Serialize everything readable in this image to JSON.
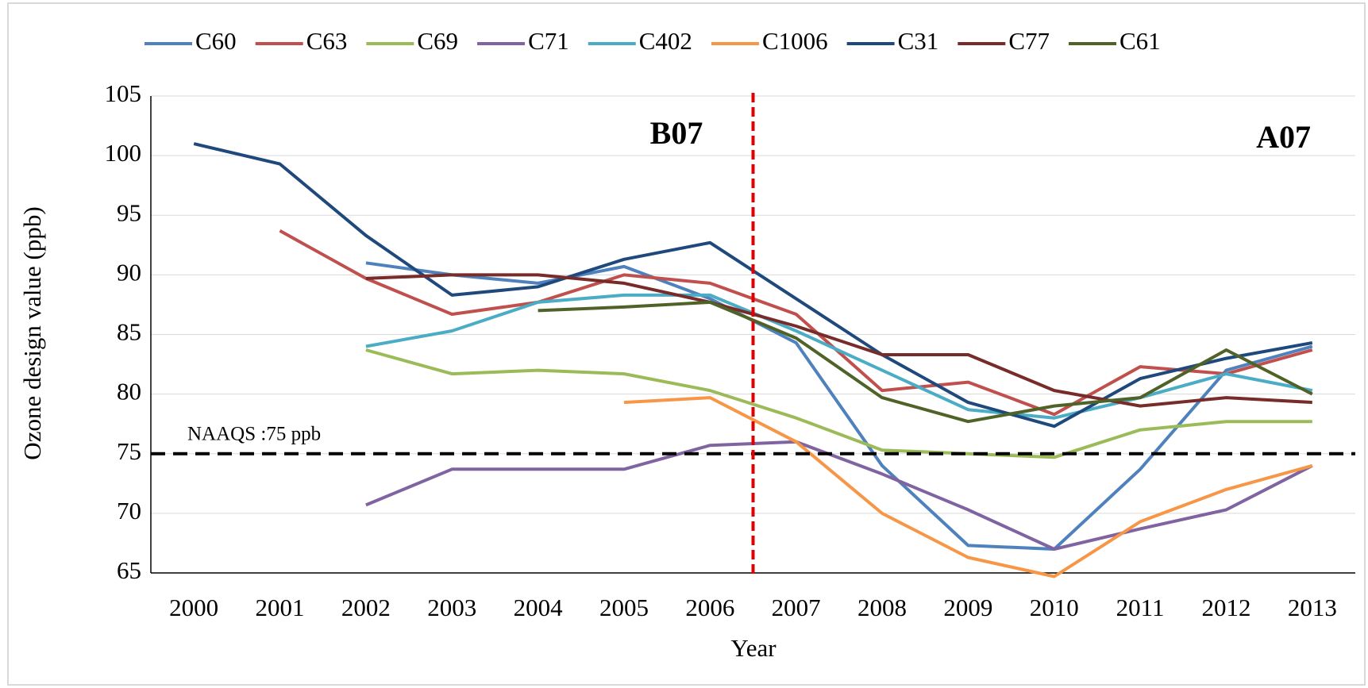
{
  "chart_data": {
    "type": "line",
    "x_label": "Year",
    "y_label": "Ozone design value (ppb)",
    "categories": [
      "2000",
      "2001",
      "2002",
      "2003",
      "2004",
      "2005",
      "2006",
      "2007",
      "2008",
      "2009",
      "2010",
      "2011",
      "2012",
      "2013"
    ],
    "series": [
      {
        "name": "C60",
        "color": "#4f81bd",
        "values": [
          null,
          null,
          91,
          90,
          89.3,
          90.7,
          88,
          84.3,
          74,
          67.3,
          67,
          73.7,
          82,
          84
        ]
      },
      {
        "name": "C63",
        "color": "#c0504d",
        "values": [
          null,
          93.7,
          89.7,
          86.7,
          87.7,
          90,
          89.3,
          86.7,
          80.3,
          81,
          78.3,
          82.3,
          81.7,
          83.7
        ]
      },
      {
        "name": "C69",
        "color": "#9bbb59",
        "values": [
          null,
          null,
          83.7,
          81.7,
          82,
          81.7,
          80.3,
          78,
          75.3,
          75,
          74.7,
          77,
          77.7,
          77.7
        ]
      },
      {
        "name": "C71",
        "color": "#8064a2",
        "values": [
          null,
          null,
          70.7,
          73.7,
          73.7,
          73.7,
          75.7,
          76,
          73.3,
          70.3,
          67,
          68.7,
          70.3,
          74
        ]
      },
      {
        "name": "C402",
        "color": "#4bacc6",
        "values": [
          null,
          null,
          84,
          85.3,
          87.7,
          88.3,
          88.3,
          85.3,
          82,
          78.7,
          78,
          79.7,
          81.7,
          80.3
        ]
      },
      {
        "name": "C1006",
        "color": "#f79646",
        "values": [
          null,
          null,
          null,
          null,
          null,
          79.3,
          79.7,
          76,
          70,
          66.3,
          64.7,
          69.3,
          72,
          74
        ]
      },
      {
        "name": "C31",
        "color": "#1f497d",
        "values": [
          101,
          99.3,
          93.3,
          88.3,
          89,
          91.3,
          92.7,
          88,
          83.3,
          79.3,
          77.3,
          81.3,
          83,
          84.3
        ]
      },
      {
        "name": "C77",
        "color": "#772c2a",
        "values": [
          null,
          null,
          89.7,
          90,
          90,
          89.3,
          87.7,
          85.7,
          83.3,
          83.3,
          80.3,
          79,
          79.7,
          79.3
        ]
      },
      {
        "name": "C61",
        "color": "#4f6228",
        "values": [
          null,
          null,
          null,
          null,
          87,
          87.3,
          87.7,
          84.7,
          79.7,
          77.7,
          79,
          79.7,
          83.7,
          80
        ]
      }
    ],
    "ylim": [
      65,
      105
    ],
    "yticks": [
      65,
      70,
      75,
      80,
      85,
      90,
      95,
      100,
      105
    ],
    "grid": true,
    "hlines": [
      {
        "value": 75,
        "label": "NAAQS :75 ppb",
        "color": "#000000"
      }
    ],
    "annotations": [
      "B07",
      "A07"
    ],
    "legend": "top"
  }
}
